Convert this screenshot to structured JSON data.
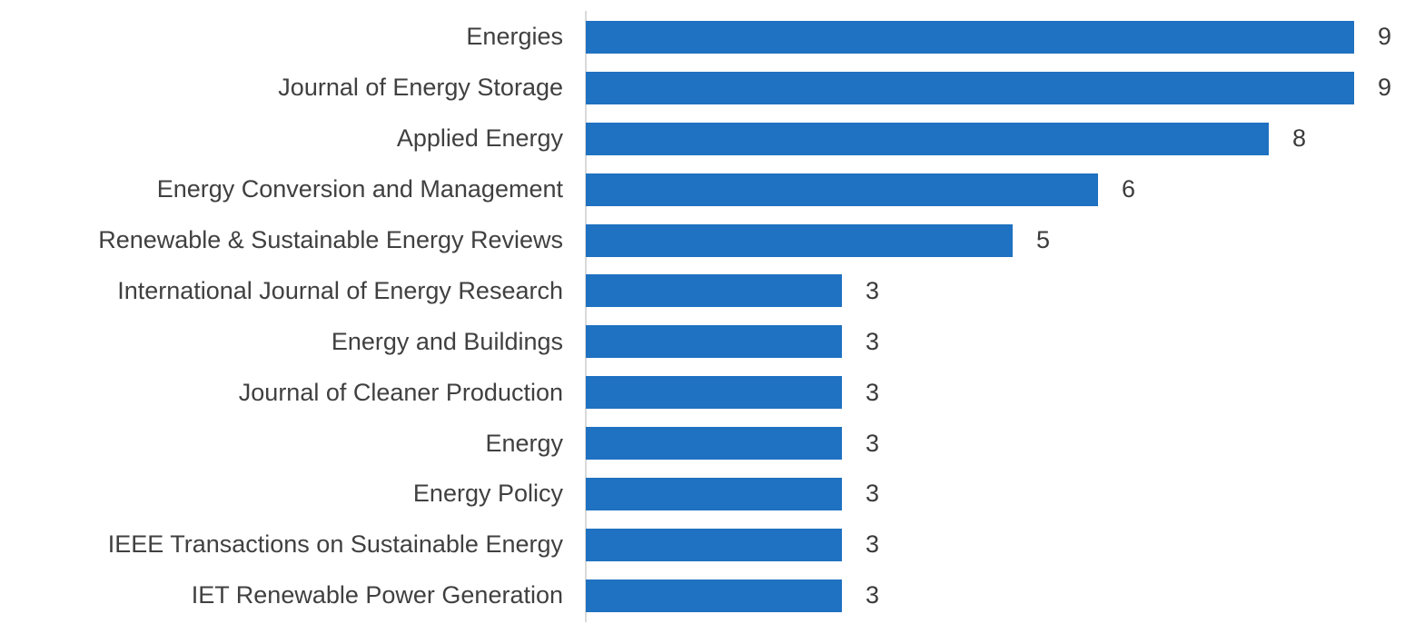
{
  "chart_data": {
    "type": "bar",
    "orientation": "horizontal",
    "title": "",
    "xlabel": "",
    "ylabel": "",
    "categories": [
      "Energies",
      "Journal of Energy Storage",
      "Applied Energy",
      "Energy Conversion and Management",
      "Renewable & Sustainable Energy Reviews",
      "International Journal of Energy Research",
      "Energy and Buildings",
      "Journal of Cleaner Production",
      "Energy",
      "Energy Policy",
      "IEEE Transactions on Sustainable Energy",
      "IET Renewable Power Generation"
    ],
    "values": [
      9,
      9,
      8,
      6,
      5,
      3,
      3,
      3,
      3,
      3,
      3,
      3
    ],
    "data_labels": [
      "9",
      "9",
      "8",
      "6",
      "5",
      "3",
      "3",
      "3",
      "3",
      "3",
      "3",
      "3"
    ],
    "xlim": [
      0,
      9.6
    ],
    "grid": false,
    "legend": false,
    "colors": {
      "bar": "#1F71C1",
      "axis_line": "#D9D9D9",
      "category_label": "#404040",
      "value_label": "#3B3B3B",
      "background": "#FFFFFF"
    }
  }
}
